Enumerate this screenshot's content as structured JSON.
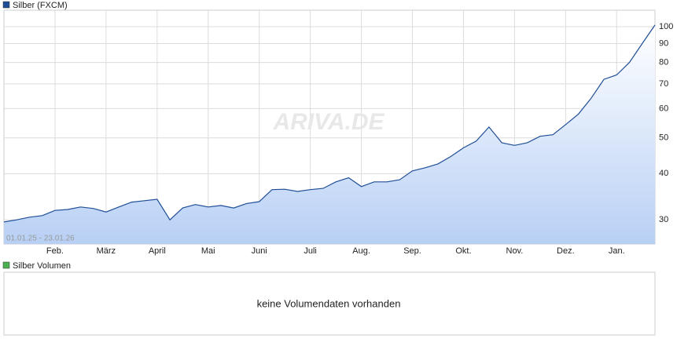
{
  "chart_data": {
    "type": "line",
    "title": "Silber (FXCM)",
    "color": "#1f4e96",
    "date_range": "01.01.25 - 23.01.26",
    "watermark": "ARIVA.DE",
    "categories": [
      null,
      null,
      null,
      null,
      "Feb.",
      null,
      null,
      null,
      "März",
      null,
      null,
      null,
      "April",
      null,
      null,
      null,
      "Mai",
      null,
      null,
      null,
      "Juni",
      null,
      null,
      null,
      "Juli",
      null,
      null,
      null,
      "Aug.",
      null,
      null,
      null,
      "Sep.",
      null,
      null,
      null,
      "Okt.",
      null,
      null,
      null,
      "Nov.",
      null,
      null,
      null,
      "Dez.",
      null,
      null,
      null,
      "Jan.",
      null,
      null,
      null
    ],
    "values": [
      29.6,
      30.0,
      30.5,
      30.8,
      31.8,
      32.0,
      32.5,
      32.2,
      31.5,
      32.5,
      33.5,
      33.8,
      34.1,
      30.0,
      32.3,
      33.0,
      32.5,
      32.8,
      32.3,
      33.2,
      33.6,
      36.2,
      36.3,
      35.8,
      36.2,
      36.5,
      38.0,
      39.0,
      36.9,
      38.0,
      38.0,
      38.5,
      40.7,
      41.5,
      42.5,
      44.5,
      47.0,
      49.0,
      53.5,
      48.5,
      47.7,
      48.5,
      50.5,
      51.0,
      54.3,
      58.0,
      64.0,
      72.0,
      74.0,
      80.0,
      90.0,
      101.0
    ],
    "ylim": [
      25.8,
      110.8
    ],
    "yticks": [
      30,
      40,
      50,
      60,
      70,
      80,
      90,
      100
    ],
    "log_scale": true,
    "grid": true,
    "volume_panel": {
      "title": "Silber Volumen",
      "color": "#4caf50",
      "message": "keine Volumendaten vorhanden"
    }
  }
}
